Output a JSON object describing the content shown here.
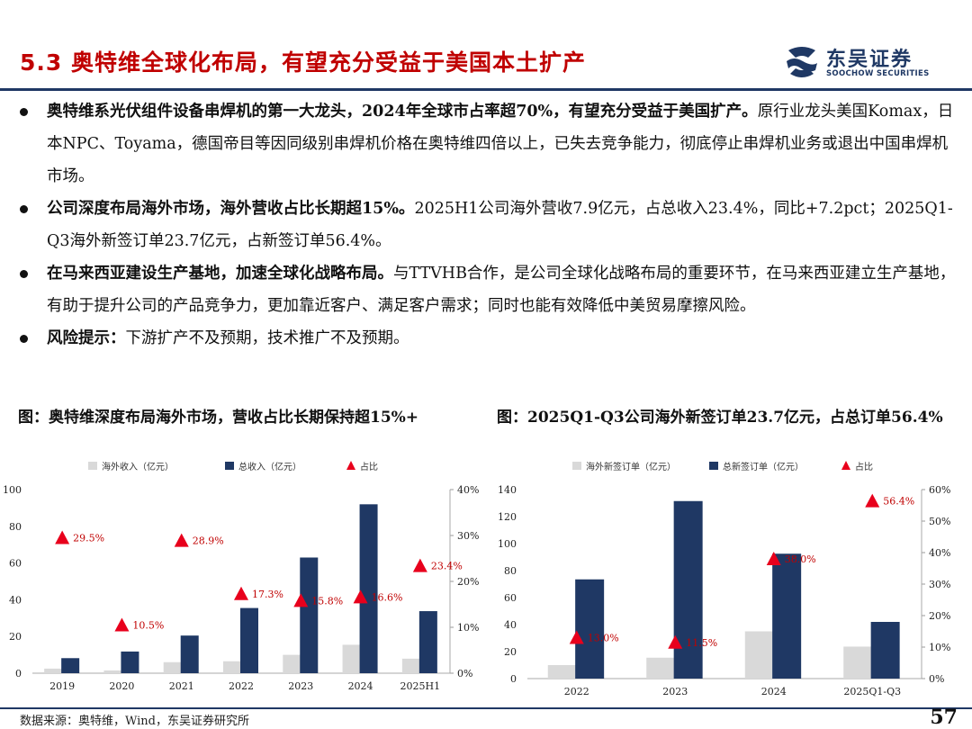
{
  "header": {
    "title": "5.3 奥特维全球化布局，有望充分受益于美国本土扩产"
  },
  "logo": {
    "cn": "东吴证券",
    "en": "SOOCHOW SECURITIES"
  },
  "bullets": [
    {
      "bold": "奥特维系光伏组件设备串焊机的第一大龙头，2024年全球市占率超70%，有望充分受益于美国扩产。",
      "text": "原行业龙头美国Komax，日本NPC、Toyama，德国帝目等因同级别串焊机价格在奥特维四倍以上，已失去竞争能力，彻底停止串焊机业务或退出中国串焊机市场。"
    },
    {
      "bold": "公司深度布局海外市场，海外营收占比长期超15%。",
      "text": "2025H1公司海外营收7.9亿元，占总收入23.4%，同比+7.2pct；2025Q1-Q3海外新签订单23.7亿元，占新签订单56.4%。"
    },
    {
      "bold": "在马来西亚建设生产基地，加速全球化战略布局。",
      "text": "与TTVHB合作，是公司全球化战略布局的重要环节，在马来西亚建立生产基地，有助于提升公司的产品竞争力，更加靠近客户、满足客户需求；同时也能有效降低中美贸易摩擦风险。"
    },
    {
      "bold": "风险提示：",
      "text": "下游扩产不及预期，技术推广不及预期。"
    }
  ],
  "captions": {
    "left": "图：奥特维深度布局海外市场，营收占比长期保持超15%+",
    "right": "图：2025Q1-Q3公司海外新签订单23.7亿元，占总订单56.4%"
  },
  "chart_data": [
    {
      "type": "bar",
      "categories": [
        "2019",
        "2020",
        "2021",
        "2022",
        "2023",
        "2024",
        "2025H1"
      ],
      "series": [
        {
          "name": "海外收入（亿元）",
          "values": [
            2.5,
            1.5,
            6.0,
            6.5,
            10.0,
            15.5,
            7.9
          ],
          "color": "#d9d9d9",
          "axis": "left"
        },
        {
          "name": "总收入（亿元）",
          "values": [
            8.2,
            11.8,
            20.5,
            35.5,
            63.0,
            92.0,
            33.8
          ],
          "color": "#1f3864",
          "axis": "left"
        },
        {
          "name": "占比",
          "values": [
            29.5,
            10.5,
            28.9,
            17.3,
            15.8,
            16.6,
            23.4
          ],
          "labels": [
            "29.5%",
            "10.5%",
            "28.9%",
            "17.3%",
            "15.8%",
            "16.6%",
            "23.4%"
          ],
          "color": "#e8001c",
          "axis": "right",
          "marker": "triangle"
        }
      ],
      "yticks_left": [
        "0",
        "20",
        "40",
        "60",
        "80",
        "100"
      ],
      "yticks_right": [
        "0%",
        "10%",
        "20%",
        "30%",
        "40%"
      ],
      "ylim": [
        0,
        100
      ],
      "y2lim": [
        0,
        40
      ],
      "legend": "top"
    },
    {
      "type": "bar",
      "categories": [
        "2022",
        "2023",
        "2024",
        "2025Q1-Q3"
      ],
      "series": [
        {
          "name": "海外新签订单（亿元）",
          "values": [
            10.0,
            15.5,
            35.0,
            23.7
          ],
          "color": "#d9d9d9",
          "axis": "left"
        },
        {
          "name": "总新签订单（亿元）",
          "values": [
            73.5,
            131.5,
            92.5,
            42.0
          ],
          "color": "#1f3864",
          "axis": "left"
        },
        {
          "name": "占比",
          "values": [
            13.0,
            11.5,
            38.0,
            56.4
          ],
          "labels": [
            "13.0%",
            "11.5%",
            "38.0%",
            "56.4%"
          ],
          "color": "#e8001c",
          "axis": "right",
          "marker": "triangle"
        }
      ],
      "yticks_left": [
        "0",
        "20",
        "40",
        "60",
        "80",
        "100",
        "120",
        "140"
      ],
      "yticks_right": [
        "0%",
        "10%",
        "20%",
        "30%",
        "40%",
        "50%",
        "60%"
      ],
      "ylim": [
        0,
        140
      ],
      "y2lim": [
        0,
        60
      ],
      "legend": "top"
    }
  ],
  "footer": {
    "source": "数据来源：奥特维，Wind，东吴证券研究所",
    "page": "57"
  }
}
